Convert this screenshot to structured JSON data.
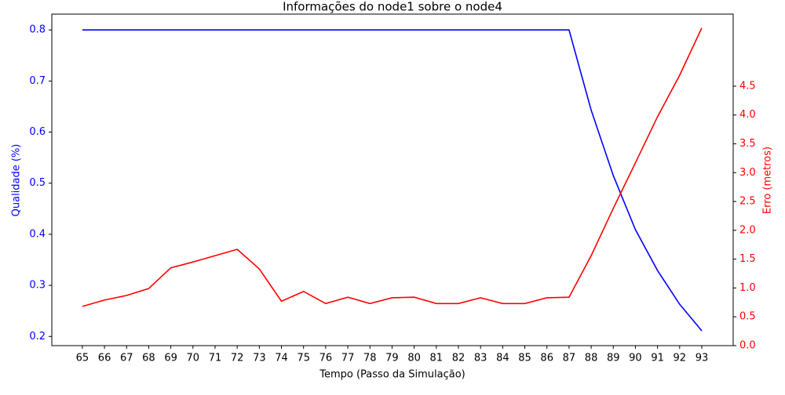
{
  "chart_data": {
    "type": "line",
    "title": "Informações do node1 sobre o node4",
    "x_label": "Tempo (Passo da Simulação)",
    "y_label": "Qualidade (%)",
    "y2_label": "Erro (metros)",
    "y_color": "#0000ff",
    "y2_color": "#ff0000",
    "x": [
      65,
      66,
      67,
      68,
      69,
      70,
      71,
      72,
      73,
      74,
      75,
      76,
      77,
      78,
      79,
      80,
      81,
      82,
      83,
      84,
      85,
      86,
      87,
      88,
      89,
      90,
      91,
      92,
      93
    ],
    "xlim": [
      63.62,
      94.42
    ],
    "xticks": [
      65,
      66,
      67,
      68,
      69,
      70,
      71,
      72,
      73,
      74,
      75,
      76,
      77,
      78,
      79,
      80,
      81,
      82,
      83,
      84,
      85,
      86,
      87,
      88,
      89,
      90,
      91,
      92,
      93
    ],
    "ylim": [
      0.182,
      0.831
    ],
    "yticks": [
      0.2,
      0.3,
      0.4,
      0.5,
      0.6,
      0.7,
      0.8
    ],
    "y2lim": [
      0,
      5.75
    ],
    "y2ticks": [
      {
        "value": 0,
        "label": "0.0"
      },
      0.5,
      {
        "value": 1,
        "label": "1.0"
      },
      1.5,
      {
        "value": 2,
        "label": "2.0"
      },
      2.5,
      {
        "value": 3,
        "label": "3.0"
      },
      3.5,
      {
        "value": 4,
        "label": "4.0"
      },
      4.5
    ],
    "grid": false,
    "series": [
      {
        "color": "#0000ff",
        "values": [
          0.8,
          0.8,
          0.8,
          0.8,
          0.8,
          0.8,
          0.8,
          0.8,
          0.8,
          0.8,
          0.8,
          0.8,
          0.8,
          0.8,
          0.8,
          0.8,
          0.8,
          0.8,
          0.8,
          0.8,
          0.8,
          0.8,
          0.8,
          0.643,
          0.515,
          0.409,
          0.329,
          0.263,
          0.211
        ]
      },
      {
        "color": "#ff0000",
        "axis": "y2",
        "values": [
          0.68,
          0.79,
          0.87,
          0.99,
          1.35,
          1.45,
          1.56,
          1.67,
          1.33,
          0.77,
          0.94,
          0.73,
          0.84,
          0.73,
          0.83,
          0.84,
          0.73,
          0.73,
          0.83,
          0.73,
          0.73,
          0.83,
          0.84,
          1.56,
          2.38,
          3.17,
          3.97,
          4.69,
          5.51
        ]
      }
    ]
  }
}
